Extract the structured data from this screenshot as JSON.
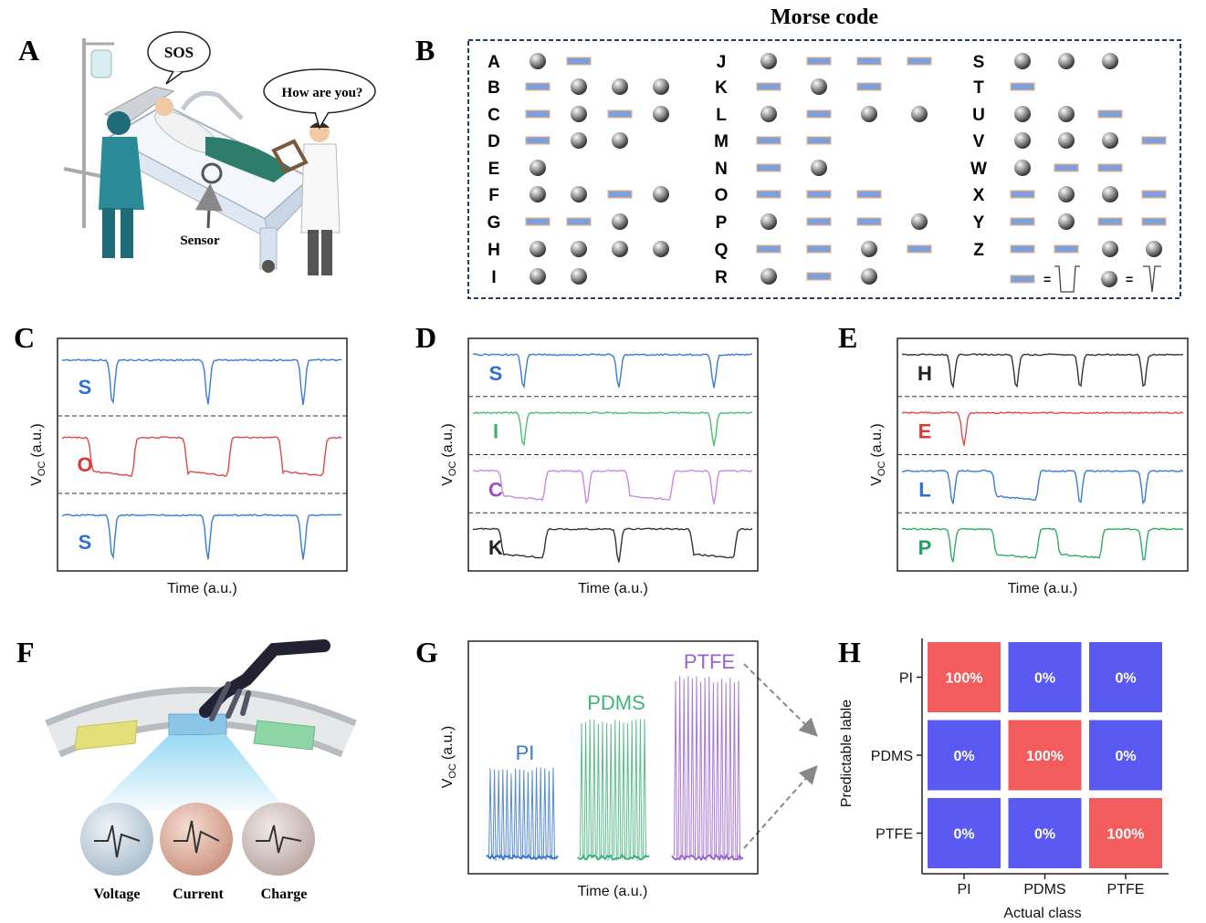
{
  "panel_labels": [
    "A",
    "B",
    "C",
    "D",
    "E",
    "F",
    "G",
    "H"
  ],
  "panel_a": {
    "bubble_1": "SOS",
    "bubble_2": "How are you?",
    "sensor_label": "Sensor"
  },
  "morse": {
    "title": "Morse code",
    "equals": "=",
    "letters": [
      {
        "letter": "A",
        "code": ".-"
      },
      {
        "letter": "B",
        "code": "-..."
      },
      {
        "letter": "C",
        "code": "-.-."
      },
      {
        "letter": "D",
        "code": "-.."
      },
      {
        "letter": "E",
        "code": "."
      },
      {
        "letter": "F",
        "code": "..-."
      },
      {
        "letter": "G",
        "code": "--."
      },
      {
        "letter": "H",
        "code": "...."
      },
      {
        "letter": "I",
        "code": ".."
      },
      {
        "letter": "J",
        "code": ".---"
      },
      {
        "letter": "K",
        "code": "-.-"
      },
      {
        "letter": "L",
        "code": ".-.."
      },
      {
        "letter": "M",
        "code": "--"
      },
      {
        "letter": "N",
        "code": "-."
      },
      {
        "letter": "O",
        "code": "---"
      },
      {
        "letter": "P",
        "code": ".--."
      },
      {
        "letter": "Q",
        "code": "--.-"
      },
      {
        "letter": "R",
        "code": ".-."
      },
      {
        "letter": "S",
        "code": "..."
      },
      {
        "letter": "T",
        "code": "-"
      },
      {
        "letter": "U",
        "code": "..-"
      },
      {
        "letter": "V",
        "code": "...-"
      },
      {
        "letter": "W",
        "code": ".--"
      },
      {
        "letter": "X",
        "code": "-..-"
      },
      {
        "letter": "Y",
        "code": "-.--"
      },
      {
        "letter": "Z",
        "code": "--.."
      }
    ]
  },
  "axis_text": {
    "xlabel": "Time (a.u.)",
    "ylabel_main": "V",
    "ylabel_sub": "OC",
    "ylabel_unit": "(a.u.)"
  },
  "signal_panels": [
    {
      "letters": [
        {
          "text": "S",
          "color": "#2e6fd0",
          "trace": "#3a7ccf"
        },
        {
          "text": "O",
          "color": "#d93a3a",
          "trace": "#dd4a4a"
        },
        {
          "text": "S",
          "color": "#2e6fd0",
          "trace": "#3a7ccf"
        }
      ]
    },
    {
      "letters": [
        {
          "text": "S",
          "color": "#2e6fd0",
          "trace": "#3a7ccf"
        },
        {
          "text": "I",
          "color": "#3cb06a",
          "trace": "#4dbb7a"
        },
        {
          "text": "C",
          "color": "#9b4fc9",
          "trace": "#c48be0"
        },
        {
          "text": "K",
          "color": "#222222",
          "trace": "#333333"
        }
      ]
    },
    {
      "letters": [
        {
          "text": "H",
          "color": "#222222",
          "trace": "#333333"
        },
        {
          "text": "E",
          "color": "#d93a3a",
          "trace": "#dd4a4a"
        },
        {
          "text": "L",
          "color": "#2e6fd0",
          "trace": "#3a7ccf"
        },
        {
          "text": "P",
          "color": "#22a060",
          "trace": "#2faa6a"
        }
      ]
    }
  ],
  "panel_f": {
    "labels": [
      "Voltage",
      "Current",
      "Charge"
    ]
  },
  "panel_g": {
    "materials": [
      {
        "name": "PI",
        "color": "#3a78c9"
      },
      {
        "name": "PDMS",
        "color": "#3fb37a"
      },
      {
        "name": "PTFE",
        "color": "#9a62d0"
      }
    ]
  },
  "panel_h": {
    "rows": [
      "PI",
      "PDMS",
      "PTFE"
    ],
    "cols": [
      "PI",
      "PDMS",
      "PTFE"
    ],
    "values": [
      [
        100,
        0,
        0
      ],
      [
        0,
        100,
        0
      ],
      [
        0,
        0,
        100
      ]
    ],
    "value_labels": [
      [
        "100%",
        "0%",
        "0%"
      ],
      [
        "0%",
        "100%",
        "0%"
      ],
      [
        "0%",
        "0%",
        "100%"
      ]
    ],
    "xlabel": "Actual class",
    "ylabel": "Predictable lable",
    "colors": {
      "high": "#f25c5c",
      "low": "#5a5af2"
    }
  }
}
